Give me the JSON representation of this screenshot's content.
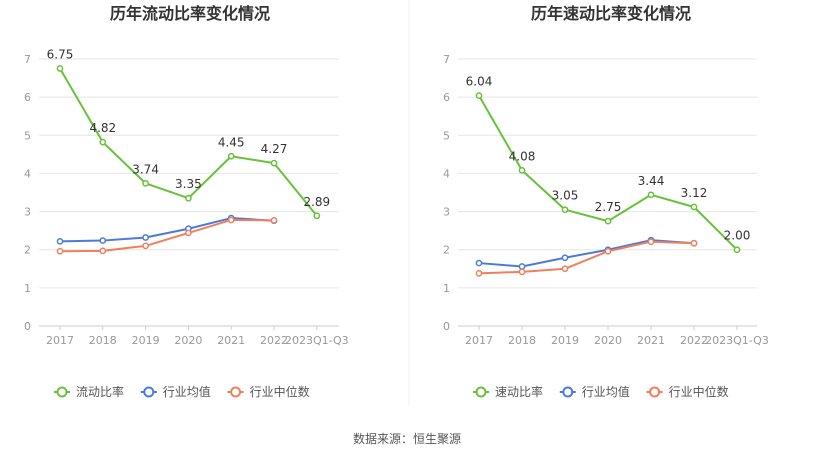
{
  "source": "数据来源：恒生聚源",
  "chart_data": [
    {
      "type": "line",
      "title": "历年流动比率变化情况",
      "categories": [
        "2017",
        "2018",
        "2019",
        "2020",
        "2021",
        "2022",
        "2023Q1-Q3"
      ],
      "ylim": [
        0,
        7
      ],
      "yticks": [
        "0",
        "1",
        "2",
        "3",
        "4",
        "5",
        "6",
        "7"
      ],
      "grid": true,
      "legend_position": "bottom",
      "series": [
        {
          "name": "流动比率",
          "color": "#67c23a",
          "values": [
            6.75,
            4.82,
            3.74,
            3.35,
            4.45,
            4.27,
            2.89
          ],
          "labels": [
            "6.75",
            "4.82",
            "3.74",
            "3.35",
            "4.45",
            "4.27",
            "2.89"
          ]
        },
        {
          "name": "行业均值",
          "color": "#4a7bd9",
          "values": [
            2.22,
            2.24,
            2.32,
            2.55,
            2.83,
            2.76,
            null
          ]
        },
        {
          "name": "行业中位数",
          "color": "#f07f5c",
          "values": [
            1.96,
            1.97,
            2.1,
            2.44,
            2.78,
            2.77,
            null
          ]
        }
      ]
    },
    {
      "type": "line",
      "title": "历年速动比率变化情况",
      "categories": [
        "2017",
        "2018",
        "2019",
        "2020",
        "2021",
        "2022",
        "2023Q1-Q3"
      ],
      "ylim": [
        0,
        7
      ],
      "yticks": [
        "0",
        "1",
        "2",
        "3",
        "4",
        "5",
        "6",
        "7"
      ],
      "grid": true,
      "legend_position": "bottom",
      "series": [
        {
          "name": "速动比率",
          "color": "#67c23a",
          "values": [
            6.04,
            4.08,
            3.05,
            2.75,
            3.44,
            3.12,
            2.0
          ],
          "labels": [
            "6.04",
            "4.08",
            "3.05",
            "2.75",
            "3.44",
            "3.12",
            "2.00"
          ]
        },
        {
          "name": "行业均值",
          "color": "#4a7bd9",
          "values": [
            1.65,
            1.56,
            1.79,
            2.0,
            2.25,
            2.17,
            null
          ]
        },
        {
          "name": "行业中位数",
          "color": "#f07f5c",
          "values": [
            1.38,
            1.42,
            1.5,
            1.96,
            2.21,
            2.17,
            null
          ]
        }
      ]
    }
  ]
}
